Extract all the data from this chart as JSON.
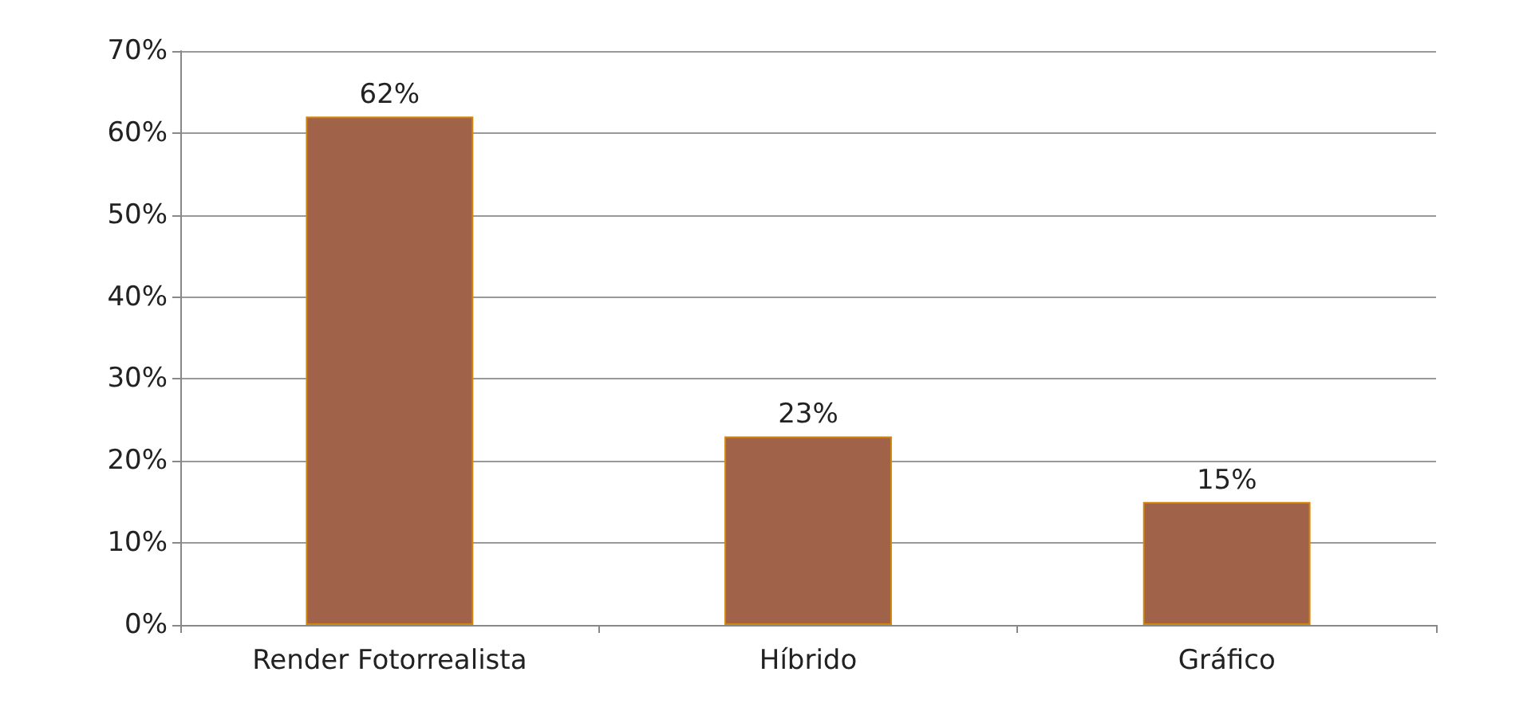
{
  "chart_data": {
    "type": "bar",
    "categories": [
      "Render Fotorrealista",
      "Híbrido",
      "Gráfico"
    ],
    "values": [
      62,
      23,
      15
    ],
    "value_labels": [
      "62%",
      "23%",
      "15%"
    ],
    "color": "#a0634a",
    "ylim": [
      0,
      70
    ],
    "yticks": [
      {
        "value": 0,
        "label": "0%"
      },
      {
        "value": 10,
        "label": "10%"
      },
      {
        "value": 20,
        "label": "20%"
      },
      {
        "value": 30,
        "label": "30%"
      },
      {
        "value": 40,
        "label": "40%"
      },
      {
        "value": 50,
        "label": "50%"
      },
      {
        "value": 60,
        "label": "60%"
      },
      {
        "value": 70,
        "label": "70%"
      }
    ],
    "grid": "y"
  }
}
